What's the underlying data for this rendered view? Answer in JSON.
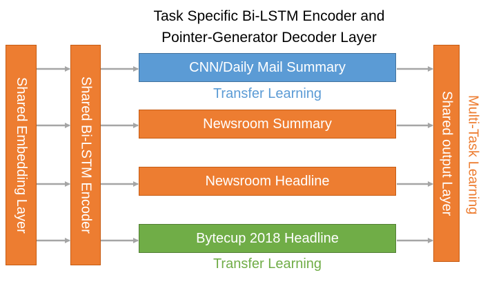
{
  "title_lines": [
    "Task Specific Bi-LSTM Encoder and",
    "Pointer-Generator Decoder Layer"
  ],
  "left_bars": {
    "embedding": "Shared Embedding Layer",
    "encoder": "Shared Bi-LSTM Encoder"
  },
  "tasks": [
    {
      "label": "CNN/Daily Mail Summary",
      "fill": "#5B9BD5",
      "stroke": "#41719C"
    },
    {
      "label": "Newsroom Summary",
      "fill": "#ED7D31",
      "stroke": "#C55A11"
    },
    {
      "label": "Newsroom Headline",
      "fill": "#ED7D31",
      "stroke": "#C55A11"
    },
    {
      "label": "Bytecup 2018 Headline",
      "fill": "#70AD47",
      "stroke": "#507E32"
    }
  ],
  "transfer_labels": [
    {
      "text": "Transfer Learning",
      "color": "#5B9BD5"
    },
    {
      "text": "Transfer Learning",
      "color": "#70AD47"
    }
  ],
  "output_bar": "Shared output Layer",
  "multi_task_label": {
    "text": "Multi-Task Learning",
    "color": "#ED7D31"
  },
  "colors": {
    "orange": "#ED7D31",
    "arrow": "#A5A5A5"
  }
}
